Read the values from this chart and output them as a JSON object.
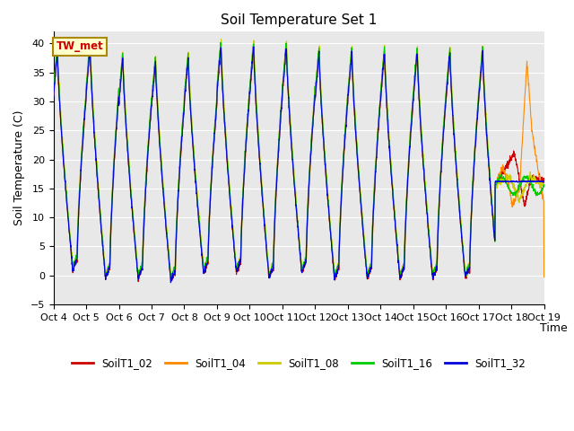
{
  "title": "Soil Temperature Set 1",
  "ylabel": "Soil Temperature (C)",
  "xlabel": "Time",
  "annotation_text": "TW_met",
  "ylim": [
    -5,
    42
  ],
  "series_names": [
    "SoilT1_02",
    "SoilT1_04",
    "SoilT1_08",
    "SoilT1_16",
    "SoilT1_32"
  ],
  "series_colors": [
    "#cc0000",
    "#ff8800",
    "#cccc00",
    "#00cc00",
    "#0000dd"
  ],
  "background_color": "#ffffff",
  "plot_bg_color": "#e8e8e8",
  "grid_color": "#ffffff",
  "tick_labels": [
    "Oct 4",
    "Oct 5",
    "Oct 6",
    "Oct 7",
    "Oct 8",
    "Oct 9",
    "Oct 10",
    "Oct 11",
    "Oct 12",
    "Oct 13",
    "Oct 14",
    "Oct 15",
    "Oct 16",
    "Oct 17",
    "Oct 18",
    "Oct 19"
  ],
  "yticks": [
    -5,
    0,
    5,
    10,
    15,
    20,
    25,
    30,
    35,
    40
  ]
}
